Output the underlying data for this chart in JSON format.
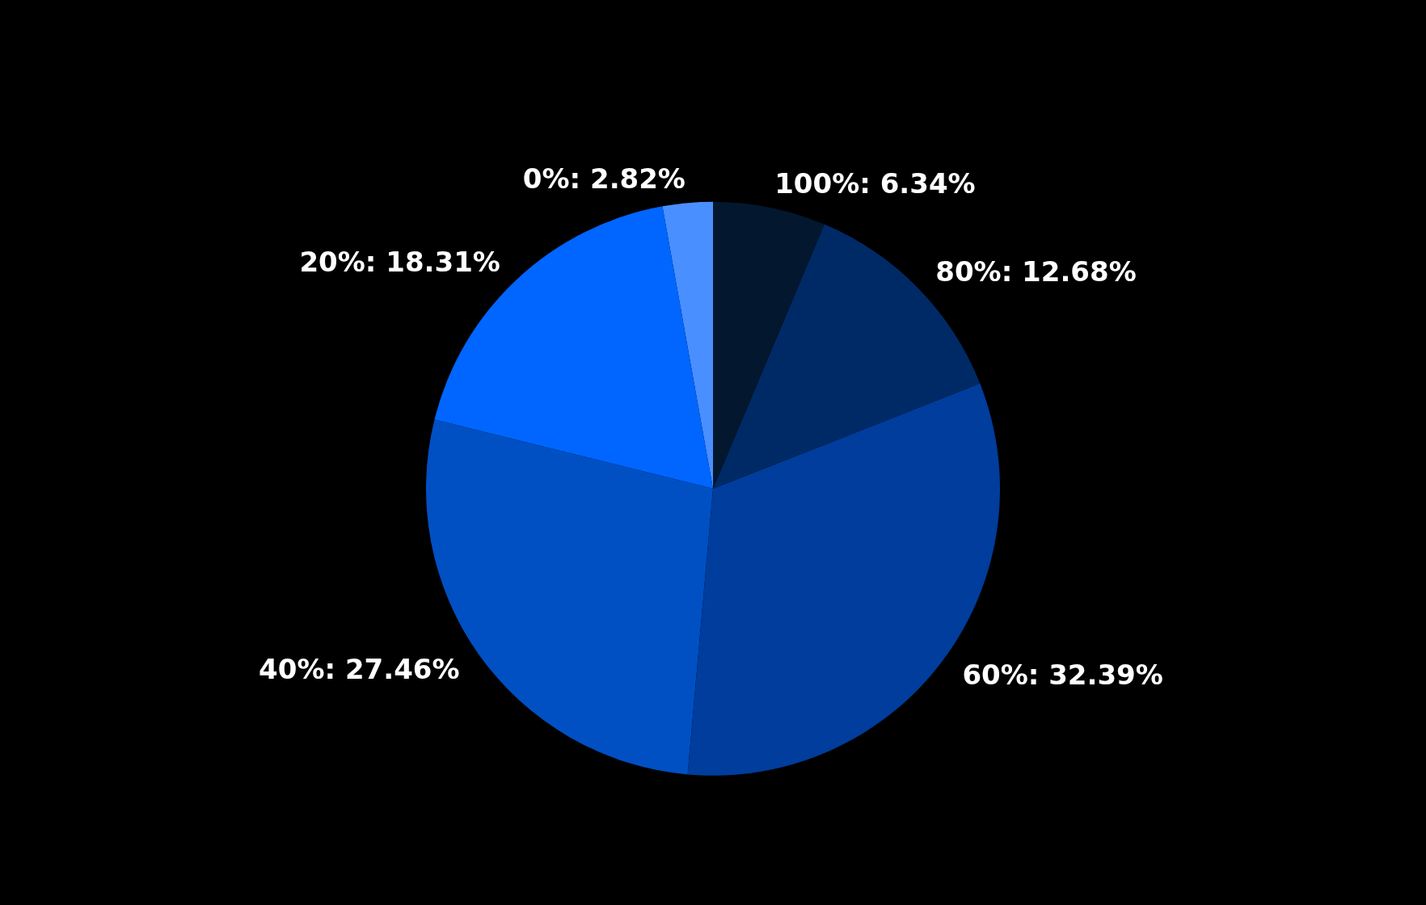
{
  "chart_data": {
    "type": "pie",
    "categories": [
      "0%",
      "20%",
      "40%",
      "60%",
      "80%",
      "100%"
    ],
    "values": [
      2.82,
      18.31,
      27.46,
      32.39,
      12.68,
      6.34
    ],
    "value_labels": [
      "2.82%",
      "18.31%",
      "27.46%",
      "32.39%",
      "12.68%",
      "6.34%"
    ],
    "colors": [
      "#4a8fff",
      "#0066ff",
      "#0050c4",
      "#003d9c",
      "#002a66",
      "#03172f"
    ],
    "legend": false
  }
}
